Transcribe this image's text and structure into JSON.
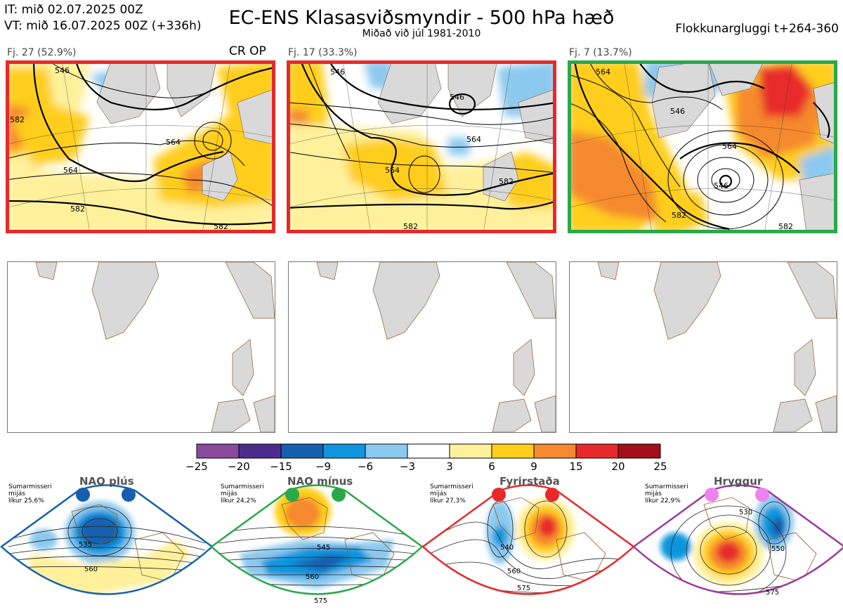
{
  "header": {
    "it_line": "IT: mið 02.07.2025 00Z",
    "vt_line": "VT: mið 16.07.2025 00Z  (+336h)",
    "title": "EC-ENS Klasasviðsmyndir - 500 hPa hæð",
    "subtitle": "Miðað við júl 1981-2010",
    "window": "Flokkunargluggi t+264-360"
  },
  "colors": {
    "red": "#e8292b",
    "green": "#2aa84a",
    "grey_land": "#d9d9d9",
    "coast": "#8b5a2b",
    "nao_plus": "#1560ae",
    "nao_minus": "#2aa84a",
    "blocking": "#e8292b",
    "ridge": "#9b3a9b",
    "ridge_dot": "#ee82ee"
  },
  "clusters": [
    {
      "label": "Fj. 27 (52.9%)",
      "tag": "CR OP",
      "contours": [
        "546",
        "564",
        "564",
        "582",
        "582",
        "582"
      ]
    },
    {
      "label": "Fj. 17 (33.3%)",
      "tag": "",
      "contours": [
        "546",
        "546",
        "564",
        "564",
        "582",
        "582"
      ]
    },
    {
      "label": "Fj. 7 (13.7%)",
      "tag": "",
      "contours": [
        "546",
        "546",
        "564",
        "564",
        "582",
        "582"
      ]
    }
  ],
  "chart_data": {
    "type": "heatmap",
    "title": "EC-ENS Klasasviðsmyndir - 500 hPa hæð",
    "colorbar": {
      "ticks": [
        "−25",
        "−20",
        "−15",
        "−9",
        "−6",
        "−3",
        "3",
        "6",
        "9",
        "15",
        "20",
        "25"
      ],
      "colors": [
        "#8a4a9c",
        "#4b2c8c",
        "#1560ae",
        "#0f96de",
        "#8cc9ef",
        "#ffffff",
        "#fff19c",
        "#ffce1a",
        "#f5892f",
        "#e8292b",
        "#a50f1a"
      ]
    },
    "clusters": [
      {
        "name": "Fj. 27",
        "percent": 52.9
      },
      {
        "name": "Fj. 17",
        "percent": 33.3
      },
      {
        "name": "Fj. 7",
        "percent": 13.7
      }
    ],
    "regimes": [
      {
        "title": "NAO plús",
        "season": "Sumarmisseri",
        "period": "mijás",
        "likelihood": "líkur 25,6%",
        "contours": [
          "535",
          "560"
        ]
      },
      {
        "title": "NAO mínus",
        "season": "Sumarmisseri",
        "period": "mijás",
        "likelihood": "líkur 24,2%",
        "contours": [
          "545",
          "560",
          "575"
        ]
      },
      {
        "title": "Fyrirstaða",
        "season": "Sumarmisseri",
        "period": "mijás",
        "likelihood": "líkur 27,3%",
        "contours": [
          "540",
          "560",
          "575"
        ]
      },
      {
        "title": "Hryggur",
        "season": "Sumarmisseri",
        "period": "mijás",
        "likelihood": "líkur 22,9%",
        "contours": [
          "530",
          "550",
          "575"
        ]
      }
    ]
  }
}
